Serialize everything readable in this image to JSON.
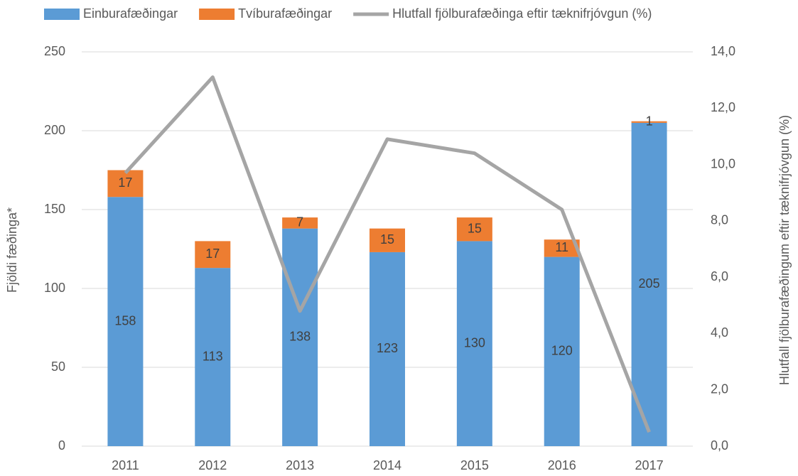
{
  "chart_data": {
    "type": "bar",
    "stacked": true,
    "categories": [
      "2011",
      "2012",
      "2013",
      "2014",
      "2015",
      "2016",
      "2017"
    ],
    "series": [
      {
        "name": "Einburafæðingar",
        "color": "#5b9bd5",
        "values": [
          158,
          113,
          138,
          123,
          130,
          120,
          205
        ]
      },
      {
        "name": "Tvíburafæðingar",
        "color": "#ed7d31",
        "values": [
          17,
          17,
          7,
          15,
          15,
          11,
          1
        ]
      },
      {
        "name": "Hlutfall fjölburafæðinga eftir tæknifrjóvgun (%)",
        "type": "line",
        "axis": "y2",
        "color": "#a5a5a5",
        "values": [
          9.7,
          13.1,
          4.8,
          10.9,
          10.4,
          8.4,
          0.5
        ]
      }
    ],
    "ylabel": "Fjöldi fæðinga*",
    "y2label": "Hlutfall fjölburafæðingum eftir tæknifrjóvgun (%)",
    "ylim": [
      0,
      250
    ],
    "yticks": [
      0,
      50,
      100,
      150,
      200,
      250
    ],
    "y2lim": [
      0,
      14
    ],
    "y2ticks": [
      {
        "value": 0,
        "label": "0,0"
      },
      {
        "value": 2,
        "label": "2,0"
      },
      {
        "value": 4,
        "label": "4,0"
      },
      {
        "value": 6,
        "label": "6,0"
      },
      {
        "value": 8,
        "label": "8,0"
      },
      {
        "value": 10,
        "label": "10,0"
      },
      {
        "value": 12,
        "label": "12,0"
      },
      {
        "value": 14,
        "label": "14,0"
      }
    ],
    "grid": true,
    "legend": "top"
  }
}
